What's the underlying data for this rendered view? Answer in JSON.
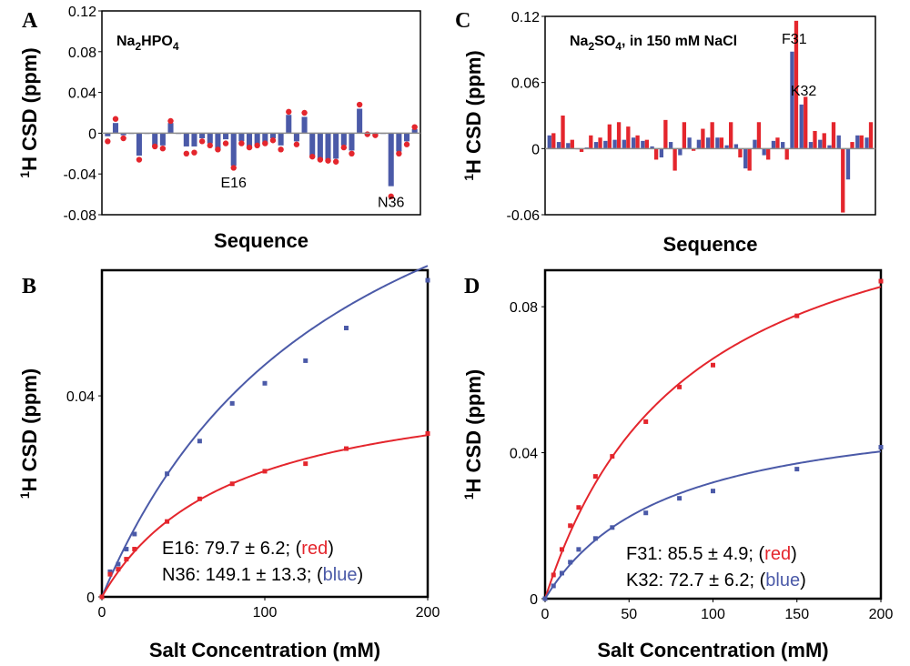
{
  "colors": {
    "red": "#e4262d",
    "blue": "#4b5aa8",
    "axis": "#000000",
    "zero": "#8c8c8c"
  },
  "chart_data": [
    {
      "id": "A",
      "panel_label": "A",
      "type": "bar",
      "salt_label": {
        "pre": "Na",
        "sub1": "2",
        "mid": "HPO",
        "sub2": "4",
        "post": ""
      },
      "xlabel": "Sequence",
      "ylabel": "1H CSD (ppm)",
      "ylim": [
        -0.08,
        0.12
      ],
      "yticks": [
        -0.08,
        -0.04,
        0,
        0.04,
        0.08,
        0.12
      ],
      "ytick_labels": [
        "-0.08",
        "-0.04",
        "0",
        "0.04",
        "0.08",
        "0.12"
      ],
      "series": [
        {
          "color": "blue",
          "style": "bar",
          "values": [
            -0.003,
            0.01,
            -0.002,
            0,
            -0.022,
            0,
            -0.013,
            -0.012,
            0.01,
            0,
            -0.013,
            -0.013,
            -0.005,
            -0.01,
            -0.017,
            -0.006,
            -0.032,
            -0.008,
            -0.015,
            -0.012,
            -0.01,
            -0.005,
            -0.012,
            0.018,
            -0.008,
            0.016,
            -0.023,
            -0.026,
            -0.026,
            -0.025,
            -0.012,
            -0.017,
            0.024,
            -0.002,
            -0.002,
            0,
            -0.052,
            -0.018,
            -0.008,
            0.004
          ]
        },
        {
          "color": "red",
          "style": "dot",
          "values": [
            -0.008,
            0.014,
            -0.005,
            null,
            -0.026,
            null,
            -0.013,
            -0.015,
            0.012,
            null,
            -0.02,
            -0.019,
            -0.008,
            -0.012,
            -0.016,
            -0.01,
            -0.034,
            -0.01,
            -0.014,
            -0.012,
            -0.01,
            -0.007,
            -0.016,
            0.021,
            -0.011,
            0.02,
            -0.023,
            -0.026,
            -0.027,
            -0.028,
            -0.014,
            -0.02,
            0.028,
            -0.001,
            -0.002,
            null,
            -0.062,
            -0.02,
            -0.011,
            0.006
          ]
        }
      ],
      "annotations": [
        {
          "text": "E16",
          "index": 16,
          "y": -0.048
        },
        {
          "text": "N36",
          "index": 36,
          "y": -0.067
        }
      ]
    },
    {
      "id": "C",
      "panel_label": "C",
      "type": "bar",
      "salt_label": {
        "pre": "Na",
        "sub1": "2",
        "mid": "SO",
        "sub2": "4",
        "post": ", in 150 mM NaCl"
      },
      "xlabel": "Sequence",
      "ylabel": "1H CSD (ppm)",
      "ylim": [
        -0.06,
        0.12
      ],
      "yticks": [
        -0.06,
        0,
        0.06,
        0.12
      ],
      "ytick_labels": [
        "-0.06",
        "0",
        "0.06",
        "0.12"
      ],
      "series": [
        {
          "color": "blue",
          "style": "bar",
          "values": [
            0.012,
            0.006,
            0.005,
            0,
            0.001,
            0.006,
            0.007,
            0.008,
            0.008,
            0.01,
            0.007,
            0.002,
            -0.008,
            0.006,
            -0.006,
            0.01,
            0.008,
            0.01,
            0.01,
            0.003,
            0.004,
            -0.018,
            0.008,
            -0.006,
            0.007,
            0.006,
            0.088,
            0.04,
            0.006,
            0.008,
            0.003,
            0.012,
            -0.028,
            0.012,
            0.01
          ]
        },
        {
          "color": "red",
          "style": "bar",
          "values": [
            0.014,
            0.03,
            0.008,
            -0.003,
            0.012,
            0.01,
            0.022,
            0.024,
            0.02,
            0.012,
            0.008,
            -0.01,
            0.026,
            -0.02,
            0.024,
            -0.002,
            0.018,
            0.024,
            0.01,
            0.024,
            -0.008,
            -0.02,
            0.024,
            -0.01,
            0.01,
            -0.01,
            0.116,
            0.047,
            0.016,
            0.014,
            0.024,
            -0.058,
            0.006,
            0.012,
            0.024
          ]
        }
      ],
      "annotations": [
        {
          "text": "F31",
          "index": 26,
          "y": 0.1
        },
        {
          "text": "K32",
          "index": 27,
          "y": 0.053
        }
      ]
    },
    {
      "id": "B",
      "panel_label": "B",
      "type": "scatter",
      "xlabel": "Salt Concentration (mM)",
      "ylabel": "1H CSD (ppm)",
      "xlim": [
        0,
        200
      ],
      "ylim": [
        0,
        0.065
      ],
      "xticks": [
        0,
        100,
        200
      ],
      "xtick_labels": [
        "0",
        "100",
        "200"
      ],
      "yticks": [
        0,
        0.04
      ],
      "ytick_labels": [
        "0",
        "0.04"
      ],
      "series": [
        {
          "color": "blue",
          "kd": 149.1,
          "bmax": 0.115,
          "x": [
            0,
            5,
            10,
            15,
            20,
            40,
            60,
            80,
            100,
            125,
            150,
            200
          ],
          "y": [
            0,
            0.005,
            0.0065,
            0.0095,
            0.0125,
            0.0245,
            0.031,
            0.0385,
            0.0425,
            0.047,
            0.0535,
            0.063
          ]
        },
        {
          "color": "red",
          "kd": 79.7,
          "bmax": 0.045,
          "x": [
            0,
            5,
            10,
            15,
            20,
            40,
            60,
            80,
            100,
            125,
            150,
            200
          ],
          "y": [
            0,
            0.0045,
            0.0055,
            0.0075,
            0.0095,
            0.015,
            0.0195,
            0.0225,
            0.025,
            0.0265,
            0.0295,
            0.0325
          ]
        }
      ],
      "fit_text": [
        {
          "main": "E16: 79.7 ± 6.2; (",
          "word": "red",
          "close": ")",
          "color": "red"
        },
        {
          "main": "N36: 149.1 ± 13.3; (",
          "word": "blue",
          "close": ")",
          "color": "blue"
        }
      ]
    },
    {
      "id": "D",
      "panel_label": "D",
      "type": "scatter",
      "xlabel": "Salt Concentration (mM)",
      "ylabel": "1H CSD (ppm)",
      "xlim": [
        0,
        200
      ],
      "ylim": [
        0,
        0.09
      ],
      "xticks": [
        0,
        50,
        100,
        150,
        200
      ],
      "xtick_labels": [
        "0",
        "50",
        "100",
        "150",
        "200"
      ],
      "yticks": [
        0,
        0.04,
        0.08
      ],
      "ytick_labels": [
        "0",
        "0.04",
        "0.08"
      ],
      "series": [
        {
          "color": "red",
          "kd": 85.5,
          "bmax": 0.122,
          "x": [
            0,
            5,
            10,
            15,
            20,
            30,
            40,
            60,
            80,
            100,
            150,
            200
          ],
          "y": [
            0,
            0.0065,
            0.0135,
            0.02,
            0.025,
            0.0335,
            0.039,
            0.0485,
            0.058,
            0.064,
            0.0775,
            0.087
          ]
        },
        {
          "color": "blue",
          "kd": 72.7,
          "bmax": 0.055,
          "x": [
            0,
            5,
            10,
            15,
            20,
            30,
            40,
            60,
            80,
            100,
            150,
            200
          ],
          "y": [
            0,
            0.0035,
            0.007,
            0.01,
            0.0135,
            0.0165,
            0.0195,
            0.0235,
            0.0275,
            0.0295,
            0.0355,
            0.0415
          ]
        }
      ],
      "fit_text": [
        {
          "main": "F31: 85.5 ± 4.9; (",
          "word": "red",
          "close": ")",
          "color": "red"
        },
        {
          "main": "K32: 72.7 ± 6.2; (",
          "word": "blue",
          "close": ")",
          "color": "blue"
        }
      ]
    }
  ]
}
